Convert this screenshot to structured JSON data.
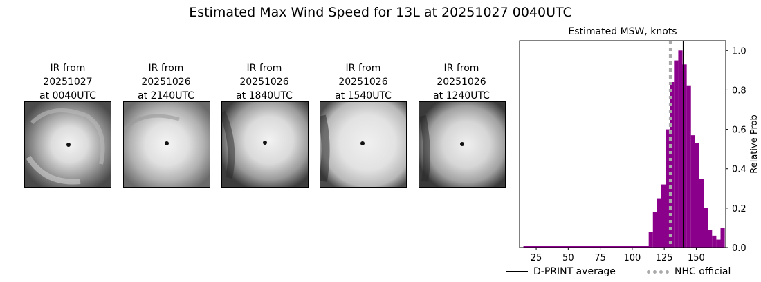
{
  "title": "Estimated Max Wind Speed for 13L at 20251027 0040UTC",
  "ir_panels": [
    {
      "line1": "IR from",
      "line2": "20251027",
      "line3": "at 0040UTC"
    },
    {
      "line1": "IR from",
      "line2": "20251026",
      "line3": "at 2140UTC"
    },
    {
      "line1": "IR from",
      "line2": "20251026",
      "line3": "at 1840UTC"
    },
    {
      "line1": "IR from",
      "line2": "20251026",
      "line3": "at 1540UTC"
    },
    {
      "line1": "IR from",
      "line2": "20251026",
      "line3": "at 1240UTC"
    }
  ],
  "chart_data": {
    "type": "bar",
    "title": "Estimated MSW, knots",
    "xlabel": "",
    "ylabel": "Relative Prob",
    "xlim": [
      12,
      173
    ],
    "ylim": [
      0,
      1.05
    ],
    "xticks": [
      25,
      50,
      75,
      100,
      125,
      150
    ],
    "yticks": [
      0.0,
      0.2,
      0.4,
      0.6,
      0.8,
      1.0
    ],
    "y_axis_side": "right",
    "bar_color": "#8b008b",
    "bin_width": 3.3,
    "bins": [
      {
        "x": 114.5,
        "value": 0.08
      },
      {
        "x": 117.8,
        "value": 0.18
      },
      {
        "x": 121.1,
        "value": 0.25
      },
      {
        "x": 124.4,
        "value": 0.32
      },
      {
        "x": 127.7,
        "value": 0.6
      },
      {
        "x": 131.0,
        "value": 0.84
      },
      {
        "x": 134.3,
        "value": 0.95
      },
      {
        "x": 137.6,
        "value": 1.0
      },
      {
        "x": 140.9,
        "value": 0.93
      },
      {
        "x": 144.2,
        "value": 0.82
      },
      {
        "x": 147.5,
        "value": 0.57
      },
      {
        "x": 150.8,
        "value": 0.53
      },
      {
        "x": 154.1,
        "value": 0.35
      },
      {
        "x": 157.4,
        "value": 0.2
      },
      {
        "x": 160.7,
        "value": 0.09
      },
      {
        "x": 164.0,
        "value": 0.06
      },
      {
        "x": 167.3,
        "value": 0.04
      },
      {
        "x": 170.6,
        "value": 0.1
      }
    ],
    "baseline_range": [
      15,
      114
    ],
    "dprint_average": 140,
    "nhc_official": 130,
    "legend_placement": "bottom",
    "legend": [
      {
        "label": "D-PRINT average",
        "style": "solid",
        "color": "#000000"
      },
      {
        "label": "NHC official",
        "style": "dotted",
        "color": "#aaaaaa"
      }
    ]
  }
}
